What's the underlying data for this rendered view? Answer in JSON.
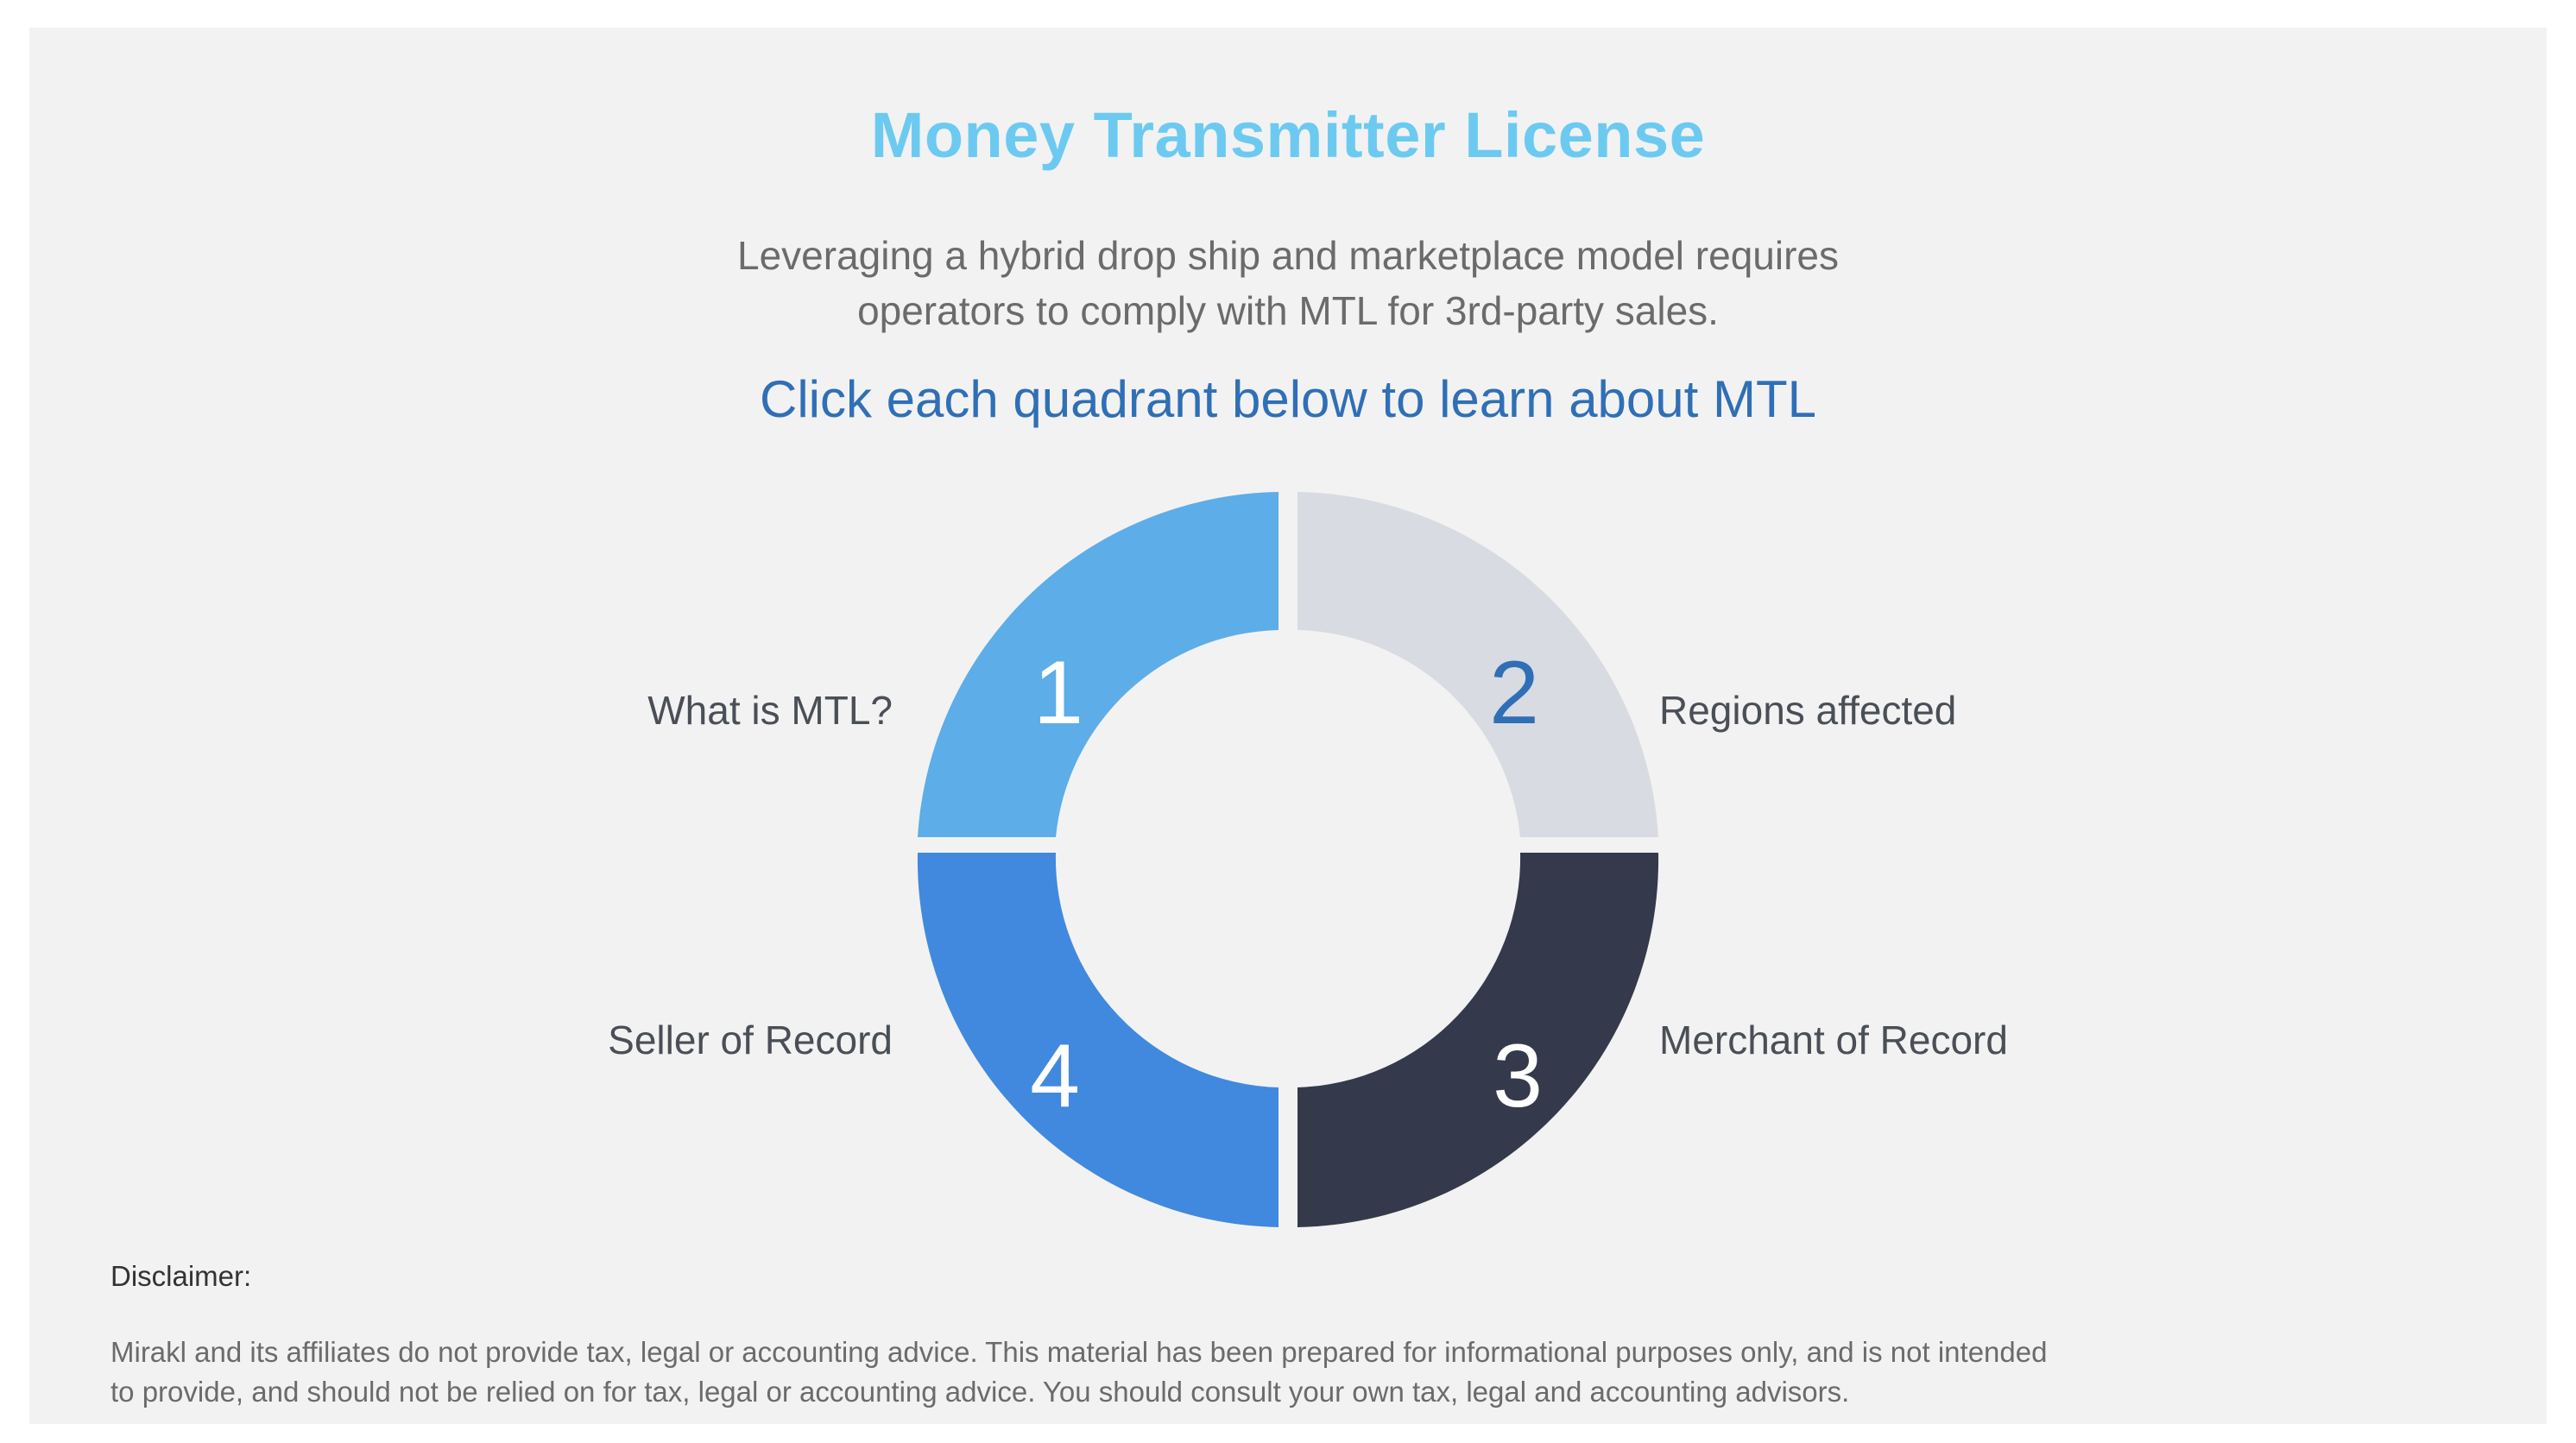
{
  "header": {
    "title": "Money Transmitter License",
    "subtitle_lines": [
      "Leveraging a hybrid drop ship and marketplace model requires",
      "operators to comply with MTL for 3rd-party sales."
    ],
    "cta": "Click each quadrant below to learn about MTL"
  },
  "quadrants": [
    {
      "number": "1",
      "label": "What is MTL?",
      "color": "#5dade8",
      "number_color": "#ffffff"
    },
    {
      "number": "2",
      "label": "Regions affected",
      "color": "#d8dbe2",
      "number_color": "#2f6fb6"
    },
    {
      "number": "3",
      "label": "Merchant of Record",
      "color": "#343a4b",
      "number_color": "#ffffff"
    },
    {
      "number": "4",
      "label": "Seller of Record",
      "color": "#4189de",
      "number_color": "#ffffff"
    }
  ],
  "disclaimer": {
    "heading": "Disclaimer:",
    "lines": [
      "Mirakl and its affiliates do not provide tax, legal or accounting advice. This material has been prepared for informational purposes only, and is not intended",
      "to provide, and should not be relied on for tax, legal or accounting advice. You should consult your own tax, legal and accounting advisors."
    ]
  },
  "colors": {
    "background": "#f2f2f2",
    "title": "#6ccaf1",
    "cta": "#2f6fb6"
  }
}
